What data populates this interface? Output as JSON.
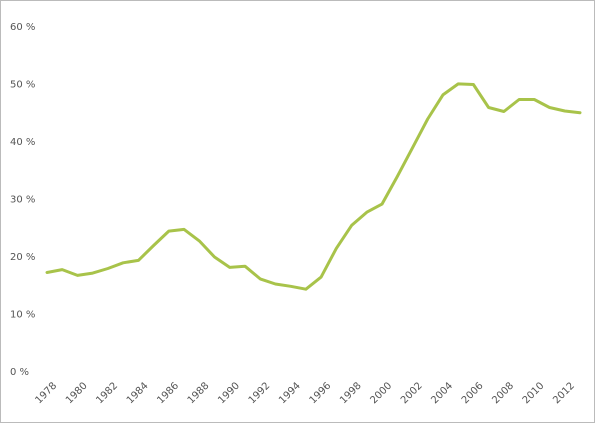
{
  "chart_data": {
    "type": "line",
    "x": [
      1978,
      1979,
      1980,
      1981,
      1982,
      1983,
      1984,
      1985,
      1986,
      1987,
      1988,
      1989,
      1990,
      1991,
      1992,
      1993,
      1994,
      1995,
      1996,
      1997,
      1998,
      1999,
      2000,
      2001,
      2002,
      2003,
      2004,
      2005,
      2006,
      2007,
      2008,
      2009,
      2010,
      2011,
      2012,
      2013
    ],
    "values": [
      17.3,
      17.8,
      16.8,
      17.2,
      18.0,
      19.0,
      19.4,
      22.0,
      24.5,
      24.8,
      22.8,
      20.0,
      18.2,
      18.4,
      16.2,
      15.3,
      14.9,
      14.4,
      16.5,
      21.5,
      25.5,
      27.8,
      29.2,
      34.0,
      39.0,
      44.0,
      48.2,
      50.1,
      50.0,
      46.0,
      45.3,
      47.4,
      47.4,
      46.0,
      45.4,
      45.1
    ],
    "color": "#a8c34a",
    "xlim": [
      1978,
      2013
    ],
    "xticks": [
      1978,
      1980,
      1982,
      1984,
      1986,
      1988,
      1990,
      1992,
      1994,
      1996,
      1998,
      2000,
      2002,
      2004,
      2006,
      2008,
      2010,
      2012
    ],
    "ylim": [
      0,
      60
    ],
    "yticks": [
      {
        "value": 0,
        "label": "0 %"
      },
      {
        "value": 10,
        "label": "10 %"
      },
      {
        "value": 20,
        "label": "20 %"
      },
      {
        "value": 30,
        "label": "30 %"
      },
      {
        "value": 40,
        "label": "40 %"
      },
      {
        "value": 50,
        "label": "50 %"
      },
      {
        "value": 60,
        "label": "60 %"
      }
    ]
  }
}
